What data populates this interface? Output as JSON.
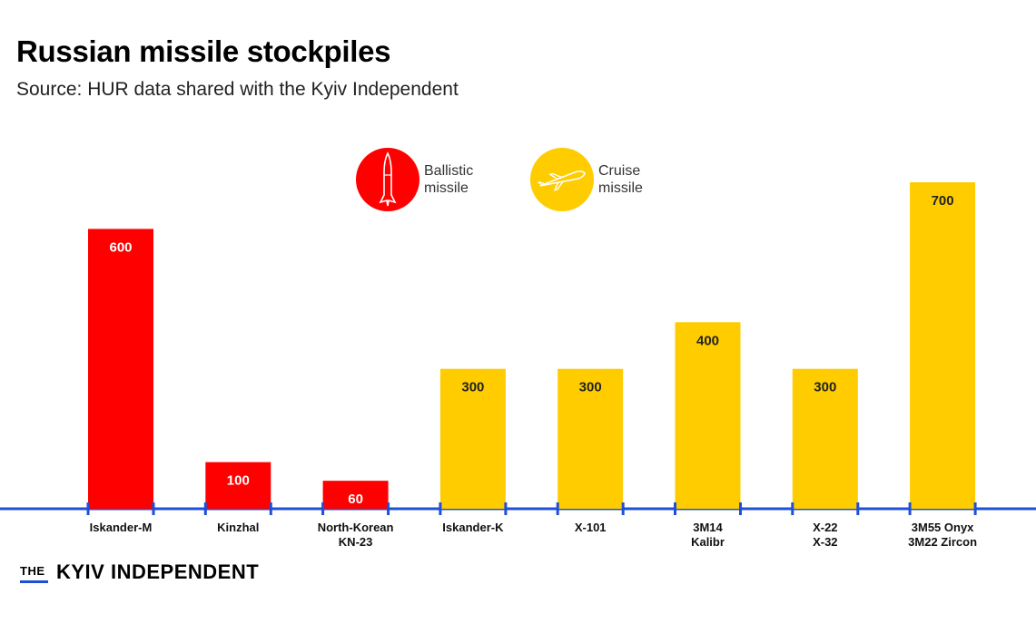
{
  "header": {
    "title": "Russian missile stockpiles",
    "subtitle": "Source: HUR data shared with the Kyiv Independent"
  },
  "legend": {
    "ballistic": {
      "label": "Ballistic\nmissile",
      "color": "#ff0000",
      "icon": "ballistic-missile-icon"
    },
    "cruise": {
      "label": "Cruise\nmissile",
      "color": "#ffcc00",
      "icon": "cruise-missile-icon"
    }
  },
  "colors": {
    "ballistic": "#ff0000",
    "cruise": "#ffcc00",
    "axis": "#1d4fd8"
  },
  "chart_data": {
    "type": "bar",
    "title": "Russian missile stockpiles",
    "categories": [
      "Iskander-M",
      "Kinzhal",
      "North-Korean\nKN-23",
      "Iskander-K",
      "X-101",
      "3M14\nKalibr",
      "X-22\nX-32",
      "3M55 Onyx\n3M22 Zircon"
    ],
    "values": [
      600,
      100,
      60,
      300,
      300,
      400,
      300,
      700
    ],
    "value_labels": [
      "600",
      "100",
      "60",
      "300",
      "300",
      "400",
      "300",
      "700"
    ],
    "missile_type": [
      "ballistic",
      "ballistic",
      "ballistic",
      "cruise",
      "cruise",
      "cruise",
      "cruise",
      "cruise"
    ],
    "series": [
      {
        "name": "Ballistic missile",
        "values": [
          600,
          100,
          60,
          null,
          null,
          null,
          null,
          null
        ]
      },
      {
        "name": "Cruise missile",
        "values": [
          null,
          null,
          null,
          300,
          300,
          400,
          300,
          700
        ]
      }
    ],
    "ylim": [
      0,
      720
    ],
    "grid": false,
    "legend_position": "top-center"
  },
  "footer": {
    "brand_prefix": "THE",
    "brand_name": "KYIV INDEPENDENT"
  }
}
